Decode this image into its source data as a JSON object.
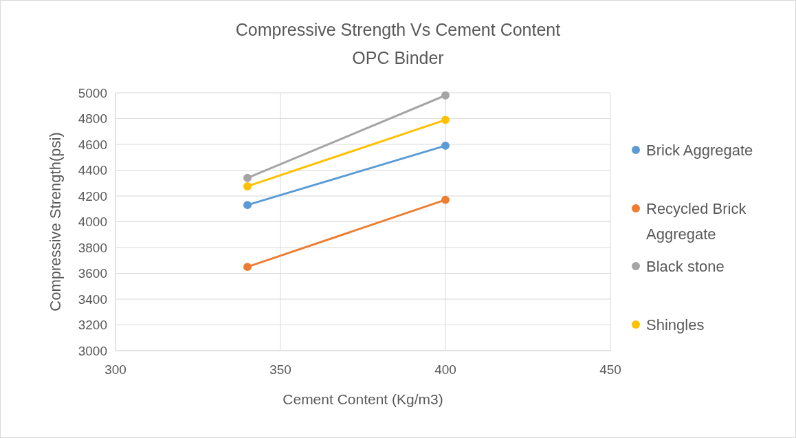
{
  "chart_data": {
    "type": "line",
    "title": "Compressive Strength Vs Cement Content",
    "subtitle": "OPC Binder",
    "xlabel": "Cement Content (Kg/m3)",
    "ylabel": "Compressive Strength(psi)",
    "x": [
      340,
      400
    ],
    "series": [
      {
        "name": "Brick Aggregate",
        "color": "#5b9bd5",
        "values": [
          4130,
          4590
        ]
      },
      {
        "name": "Recycled Brick Aggregate",
        "color": "#ed7d31",
        "values": [
          3650,
          4170
        ]
      },
      {
        "name": "Black stone",
        "color": "#a5a5a5",
        "values": [
          4340,
          4980
        ]
      },
      {
        "name": "Shingles",
        "color": "#ffc000",
        "values": [
          4275,
          4790
        ]
      }
    ],
    "xlim": [
      300,
      450
    ],
    "xticks": [
      300,
      350,
      400,
      450
    ],
    "ylim": [
      3000,
      5000
    ],
    "yticks": [
      3000,
      3200,
      3400,
      3600,
      3800,
      4000,
      4200,
      4400,
      4600,
      4800,
      5000
    ],
    "grid": true,
    "legend": "right",
    "marker": "circle",
    "line_style": "solid"
  }
}
